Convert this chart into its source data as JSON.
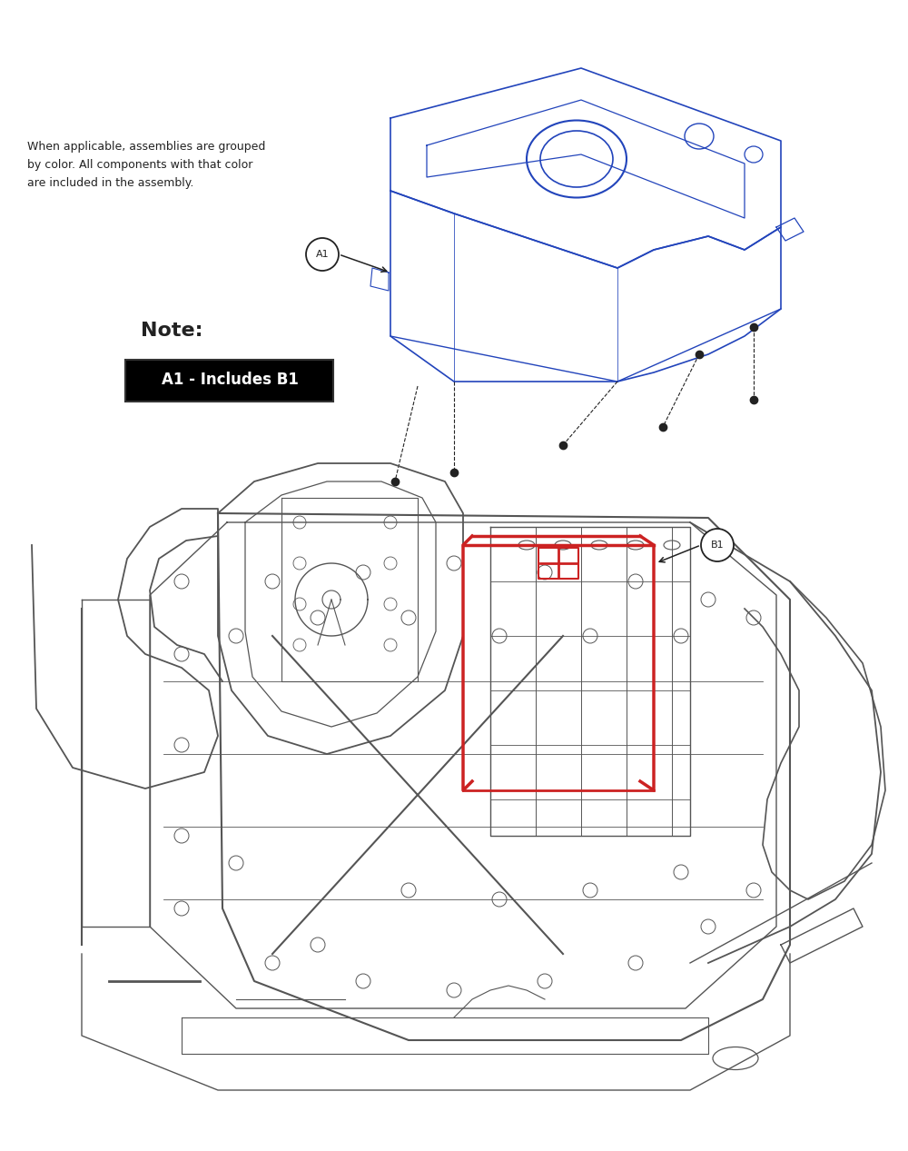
{
  "bg_color": "#ffffff",
  "note_text": "Note:",
  "note_label": "A1 - Includes B1",
  "callout_line1": "When applicable, assemblies are grouped",
  "callout_line2": "by color. All components with that color",
  "callout_line3": "are included in the assembly.",
  "part_A1_label": "A1",
  "part_B1_label": "B1",
  "blue_color": "#2244bb",
  "red_color": "#cc2222",
  "dark_color": "#222222",
  "body_color": "#555555",
  "light_body": "#888888"
}
